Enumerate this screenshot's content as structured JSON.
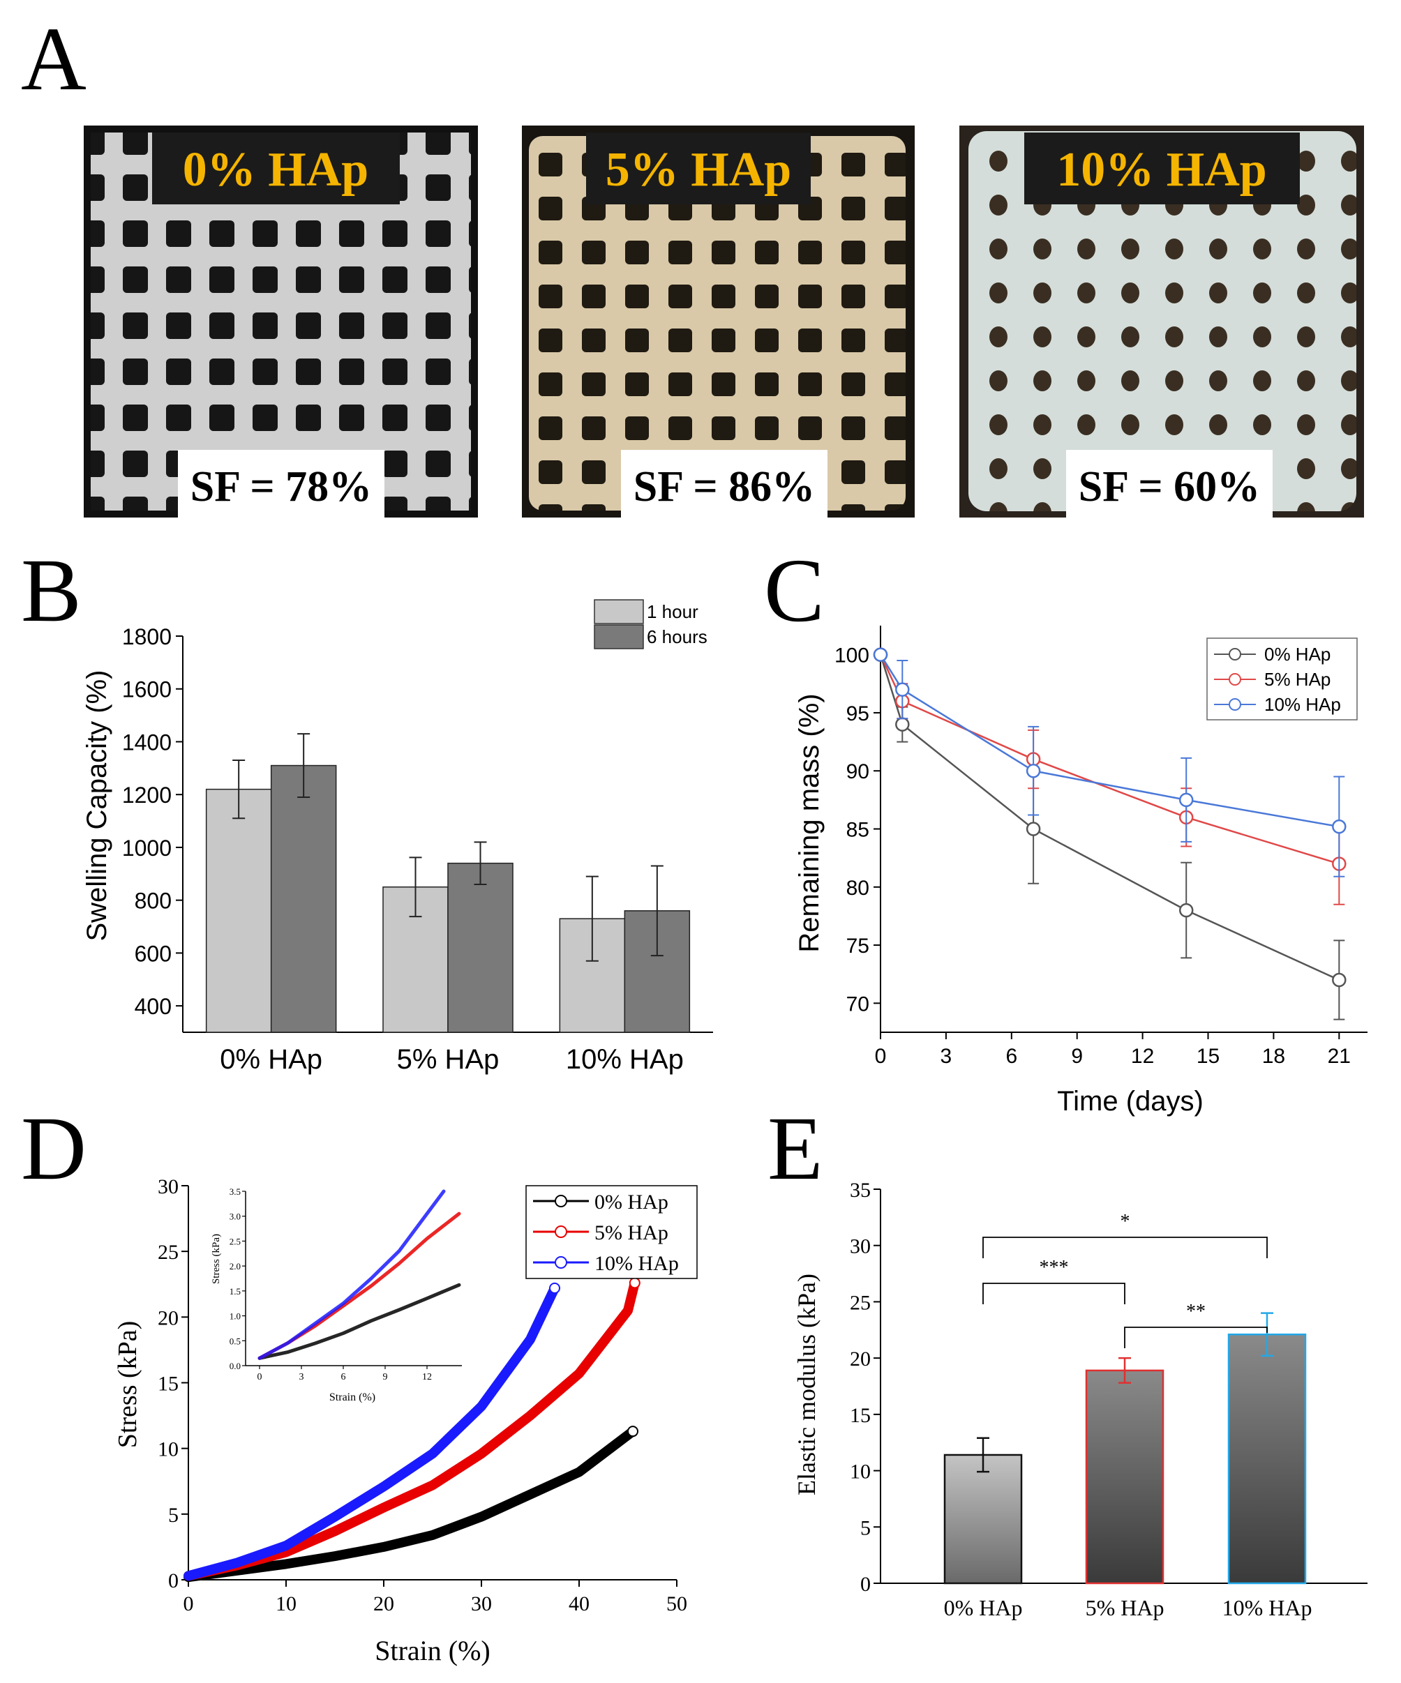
{
  "panel_labels": [
    "A",
    "B",
    "C",
    "D",
    "E"
  ],
  "photos": [
    {
      "label": "0% HAp",
      "sf": "SF = 78%"
    },
    {
      "label": "5% HAp",
      "sf": "SF = 86%"
    },
    {
      "label": "10% HAp",
      "sf": "SF = 60%"
    }
  ],
  "colors": {
    "photo_label": "#f5b400",
    "light_bar": "#c8c8c8",
    "dark_bar": "#7a7a7a",
    "series_0": "#555555",
    "series_5": "#e04848",
    "series_10": "#4a78d8",
    "stress_0": "#000000",
    "stress_5": "#e80000",
    "stress_10": "#1a1aff"
  },
  "chart_data": [
    {
      "id": "B",
      "type": "bar",
      "ylabel": "Swelling Capacity (%)",
      "categories": [
        "0% HAp",
        "5% HAp",
        "10% HAp"
      ],
      "ylim": [
        300,
        1800
      ],
      "yticks": [
        400,
        600,
        800,
        1000,
        1200,
        1400,
        1600,
        1800
      ],
      "legend": "top-right",
      "series": [
        {
          "name": "1 hour",
          "values": [
            1220,
            850,
            730
          ],
          "errors": [
            110,
            112,
            160
          ]
        },
        {
          "name": "6 hours",
          "values": [
            1310,
            940,
            760
          ],
          "errors": [
            120,
            80,
            170
          ]
        }
      ]
    },
    {
      "id": "C",
      "type": "line",
      "xlabel": "Time (days)",
      "ylabel": "Remaining mass (%)",
      "xlim": [
        0,
        22.3
      ],
      "ylim": [
        67.5,
        102.5
      ],
      "xticks": [
        0,
        3,
        6,
        9,
        12,
        15,
        18,
        21
      ],
      "yticks": [
        70,
        75,
        80,
        85,
        90,
        95,
        100
      ],
      "x": [
        0,
        1,
        7,
        14,
        21
      ],
      "legend": "top-right",
      "series": [
        {
          "name": "0% HAp",
          "values": [
            100,
            94,
            85,
            78,
            72
          ],
          "errors": [
            0,
            1.5,
            4.7,
            4.1,
            3.4
          ]
        },
        {
          "name": "5% HAp",
          "values": [
            100,
            96,
            91,
            86,
            82
          ],
          "errors": [
            0,
            1.5,
            2.5,
            2.5,
            3.5
          ]
        },
        {
          "name": "10% HAp",
          "values": [
            100,
            97,
            90,
            87.5,
            85.2
          ],
          "errors": [
            0,
            2.5,
            3.8,
            3.6,
            4.3
          ]
        }
      ]
    },
    {
      "id": "D",
      "type": "line",
      "xlabel": "Strain (%)",
      "ylabel": "Stress (kPa)",
      "xlim": [
        0,
        50
      ],
      "ylim": [
        0,
        30
      ],
      "xticks": [
        0,
        10,
        20,
        30,
        40,
        50
      ],
      "yticks": [
        0,
        5,
        10,
        15,
        20,
        25,
        30
      ],
      "legend": "top-right",
      "series": [
        {
          "name": "0% HAp",
          "x": [
            0,
            5,
            10,
            15,
            20,
            25,
            30,
            35,
            40,
            45.5
          ],
          "values": [
            0.2,
            0.7,
            1.2,
            1.8,
            2.5,
            3.4,
            4.8,
            6.5,
            8.2,
            11.3
          ]
        },
        {
          "name": "5% HAp",
          "x": [
            0,
            5,
            10,
            15,
            20,
            25,
            30,
            35,
            40,
            45,
            45.7
          ],
          "values": [
            0.3,
            1.1,
            2.1,
            3.7,
            5.5,
            7.2,
            9.6,
            12.5,
            15.7,
            20.5,
            22.6
          ]
        },
        {
          "name": "10% HAp",
          "x": [
            0,
            5,
            10,
            15,
            20,
            25,
            30,
            35,
            37.5
          ],
          "values": [
            0.3,
            1.3,
            2.6,
            4.8,
            7.1,
            9.6,
            13.2,
            18.3,
            22.2
          ]
        }
      ],
      "inset": {
        "xlabel": "Strain (%)",
        "ylabel": "Stress (kPa)",
        "xlim": [
          -1,
          14.5
        ],
        "ylim": [
          0,
          3.5
        ],
        "xticks": [
          0,
          3,
          6,
          9,
          12
        ],
        "yticks": [
          0.0,
          0.5,
          1.0,
          1.5,
          2.0,
          2.5,
          3.0,
          3.5
        ],
        "series": [
          {
            "name": "0% HAp",
            "x": [
              0,
              2,
              4,
              6,
              8,
              10,
              12,
              14.3
            ],
            "values": [
              0.15,
              0.27,
              0.45,
              0.65,
              0.9,
              1.12,
              1.35,
              1.62
            ]
          },
          {
            "name": "5% HAp",
            "x": [
              0,
              2,
              4,
              6,
              8,
              10,
              12,
              14.3
            ],
            "values": [
              0.15,
              0.45,
              0.8,
              1.2,
              1.6,
              2.05,
              2.55,
              3.05
            ]
          },
          {
            "name": "10% HAp",
            "x": [
              0,
              2,
              4,
              6,
              8,
              10,
              12,
              13.2
            ],
            "values": [
              0.15,
              0.45,
              0.85,
              1.25,
              1.75,
              2.3,
              3.05,
              3.5
            ]
          }
        ]
      }
    },
    {
      "id": "E",
      "type": "bar",
      "ylabel": "Elastic modulus (kPa)",
      "categories": [
        "0% HAp",
        "5% HAp",
        "10% HAp"
      ],
      "values": [
        11.4,
        18.9,
        22.1
      ],
      "errors": [
        1.5,
        1.1,
        1.9
      ],
      "ylim": [
        0,
        35
      ],
      "yticks": [
        0,
        5,
        10,
        15,
        20,
        25,
        30,
        35
      ],
      "significance": [
        {
          "from": 0,
          "to": 2,
          "label": "*"
        },
        {
          "from": 0,
          "to": 1,
          "label": "***"
        },
        {
          "from": 1,
          "to": 2,
          "label": "**"
        }
      ]
    }
  ]
}
